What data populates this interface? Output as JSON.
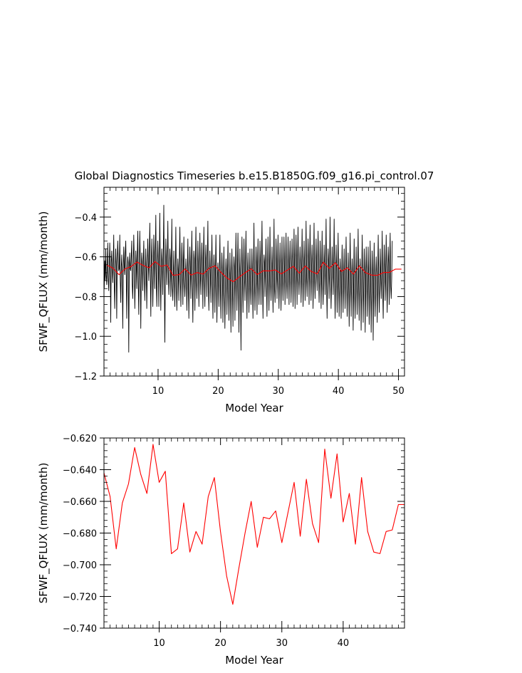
{
  "figure": {
    "title": "Global Diagnostics Timeseries b.e15.B1850G.f09_g16.pi_control.07"
  },
  "chart_data": [
    {
      "type": "line",
      "title": "Global Diagnostics Timeseries b.e15.B1850G.f09_g16.pi_control.07",
      "xlabel": "Model Year",
      "ylabel": "SFWF_QFLUX (mm/month)",
      "xlim": [
        1,
        51
      ],
      "ylim": [
        -1.2,
        -0.25
      ],
      "xticks": [
        10,
        20,
        30,
        40,
        50
      ],
      "xtick_labels": [
        "10",
        "20",
        "30",
        "40",
        "50"
      ],
      "yticks": [
        -1.2,
        -1.0,
        -0.8,
        -0.6,
        -0.4
      ],
      "ytick_labels": [
        "−1.2",
        "−1.0",
        "−0.8",
        "−0.6",
        "−0.4"
      ],
      "grid": false,
      "series": [
        {
          "role": "monthly",
          "color": "#000000",
          "x_start": 1.0417,
          "x_step": 0.08333,
          "values": [
            -0.76,
            -0.62,
            -0.72,
            -0.56,
            -0.69,
            -0.74,
            -0.66,
            -0.53,
            -0.71,
            -0.77,
            -0.66,
            -0.53,
            -0.63,
            -0.93,
            -0.63,
            -0.57,
            -0.65,
            -0.73,
            -0.65,
            -0.49,
            -0.73,
            -0.86,
            -0.69,
            -0.56,
            -0.64,
            -0.91,
            -0.63,
            -0.52,
            -0.61,
            -0.67,
            -0.66,
            -0.49,
            -0.72,
            -0.83,
            -0.65,
            -0.59,
            -0.69,
            -0.96,
            -0.67,
            -0.55,
            -0.65,
            -0.69,
            -0.58,
            -0.52,
            -0.7,
            -0.91,
            -0.67,
            -0.6,
            -0.63,
            -1.08,
            -0.67,
            -0.58,
            -0.66,
            -0.67,
            -0.6,
            -0.52,
            -0.74,
            -0.81,
            -0.66,
            -0.49,
            -0.63,
            -0.86,
            -0.72,
            -0.57,
            -0.64,
            -0.76,
            -0.59,
            -0.47,
            -0.74,
            -0.89,
            -0.64,
            -0.47,
            -0.62,
            -0.96,
            -0.69,
            -0.58,
            -0.63,
            -0.77,
            -0.64,
            -0.52,
            -0.67,
            -0.82,
            -0.7,
            -0.56,
            -0.67,
            -0.86,
            -0.67,
            -0.51,
            -0.62,
            -0.72,
            -0.6,
            -0.43,
            -0.69,
            -0.9,
            -0.64,
            -0.51,
            -0.65,
            -0.85,
            -0.68,
            -0.49,
            -0.6,
            -0.76,
            -0.59,
            -0.39,
            -0.73,
            -0.85,
            -0.65,
            -0.52,
            -0.63,
            -0.85,
            -0.64,
            -0.38,
            -0.68,
            -0.87,
            -0.67,
            -0.56,
            -0.63,
            -0.79,
            -0.59,
            -0.34,
            -0.71,
            -1.03,
            -0.69,
            -0.51,
            -0.62,
            -0.74,
            -0.63,
            -0.42,
            -0.68,
            -0.79,
            -0.7,
            -0.56,
            -0.61,
            -0.8,
            -0.66,
            -0.41,
            -0.76,
            -0.82,
            -0.71,
            -0.57,
            -0.7,
            -0.85,
            -0.67,
            -0.45,
            -0.71,
            -0.87,
            -0.74,
            -0.61,
            -0.67,
            -0.82,
            -0.64,
            -0.45,
            -0.72,
            -0.85,
            -0.66,
            -0.53,
            -0.66,
            -0.84,
            -0.63,
            -0.5,
            -0.73,
            -0.8,
            -0.71,
            -0.61,
            -0.69,
            -0.87,
            -0.7,
            -0.51,
            -0.73,
            -0.91,
            -0.69,
            -0.55,
            -0.65,
            -0.81,
            -0.65,
            -0.47,
            -0.71,
            -0.93,
            -0.71,
            -0.57,
            -0.61,
            -0.87,
            -0.63,
            -0.45,
            -0.72,
            -0.81,
            -0.68,
            -0.52,
            -0.65,
            -0.85,
            -0.67,
            -0.48,
            -0.7,
            -0.79,
            -0.64,
            -0.53,
            -0.66,
            -0.86,
            -0.62,
            -0.45,
            -0.71,
            -0.85,
            -0.65,
            -0.54,
            -0.64,
            -0.8,
            -0.62,
            -0.42,
            -0.74,
            -0.87,
            -0.71,
            -0.57,
            -0.7,
            -0.83,
            -0.66,
            -0.49,
            -0.72,
            -0.91,
            -0.73,
            -0.59,
            -0.67,
            -0.88,
            -0.68,
            -0.49,
            -0.7,
            -0.93,
            -0.71,
            -0.63,
            -0.7,
            -0.85,
            -0.67,
            -0.49,
            -0.76,
            -0.91,
            -0.7,
            -0.58,
            -0.69,
            -0.93,
            -0.72,
            -0.55,
            -0.76,
            -0.96,
            -0.73,
            -0.61,
            -0.67,
            -0.89,
            -0.7,
            -0.52,
            -0.73,
            -0.92,
            -0.74,
            -0.58,
            -0.75,
            -0.98,
            -0.69,
            -0.56,
            -0.75,
            -0.95,
            -0.72,
            -0.6,
            -0.65,
            -0.92,
            -0.68,
            -0.48,
            -0.69,
            -0.87,
            -0.68,
            -0.48,
            -0.7,
            -0.98,
            -0.71,
            -0.56,
            -0.75,
            -1.07,
            -0.68,
            -0.5,
            -0.69,
            -0.88,
            -0.69,
            -0.51,
            -0.7,
            -0.82,
            -0.65,
            -0.47,
            -0.72,
            -0.91,
            -0.69,
            -0.58,
            -0.7,
            -0.88,
            -0.69,
            -0.56,
            -0.74,
            -0.84,
            -0.71,
            -0.56,
            -0.71,
            -0.91,
            -0.71,
            -0.43,
            -0.72,
            -0.87,
            -0.72,
            -0.55,
            -0.64,
            -0.89,
            -0.66,
            -0.51,
            -0.73,
            -0.84,
            -0.7,
            -0.52,
            -0.65,
            -0.84,
            -0.62,
            -0.42,
            -0.72,
            -0.91,
            -0.68,
            -0.59,
            -0.63,
            -0.8,
            -0.65,
            -0.51,
            -0.72,
            -0.9,
            -0.68,
            -0.5,
            -0.68,
            -0.87,
            -0.67,
            -0.45,
            -0.72,
            -0.82,
            -0.68,
            -0.55,
            -0.68,
            -0.88,
            -0.67,
            -0.41,
            -0.76,
            -0.83,
            -0.71,
            -0.51,
            -0.64,
            -0.81,
            -0.68,
            -0.49,
            -0.71,
            -0.86,
            -0.68,
            -0.53,
            -0.67,
            -0.87,
            -0.67,
            -0.5,
            -0.7,
            -0.82,
            -0.68,
            -0.5,
            -0.66,
            -0.84,
            -0.66,
            -0.48,
            -0.73,
            -0.81,
            -0.69,
            -0.5,
            -0.68,
            -0.84,
            -0.64,
            -0.52,
            -0.68,
            -0.83,
            -0.67,
            -0.51,
            -0.63,
            -0.85,
            -0.66,
            -0.46,
            -0.66,
            -0.86,
            -0.64,
            -0.49,
            -0.66,
            -0.84,
            -0.64,
            -0.45,
            -0.71,
            -0.79,
            -0.68,
            -0.55,
            -0.64,
            -0.83,
            -0.67,
            -0.46,
            -0.68,
            -0.85,
            -0.67,
            -0.52,
            -0.65,
            -0.82,
            -0.68,
            -0.42,
            -0.7,
            -0.8,
            -0.66,
            -0.51,
            -0.63,
            -0.84,
            -0.64,
            -0.44,
            -0.69,
            -0.82,
            -0.65,
            -0.54,
            -0.65,
            -0.86,
            -0.65,
            -0.43,
            -0.7,
            -0.81,
            -0.66,
            -0.51,
            -0.67,
            -0.77,
            -0.64,
            -0.47,
            -0.69,
            -0.83,
            -0.7,
            -0.52,
            -0.66,
            -0.86,
            -0.67,
            -0.47,
            -0.72,
            -0.84,
            -0.71,
            -0.54,
            -0.64,
            -0.79,
            -0.64,
            -0.41,
            -0.73,
            -0.91,
            -0.67,
            -0.56,
            -0.63,
            -0.81,
            -0.67,
            -0.4,
            -0.7,
            -0.86,
            -0.7,
            -0.55,
            -0.66,
            -0.79,
            -0.65,
            -0.41,
            -0.71,
            -0.91,
            -0.68,
            -0.54,
            -0.67,
            -0.88,
            -0.69,
            -0.48,
            -0.73,
            -0.9,
            -0.71,
            -0.61,
            -0.7,
            -0.91,
            -0.72,
            -0.54,
            -0.73,
            -0.88,
            -0.7,
            -0.56,
            -0.71,
            -0.86,
            -0.68,
            -0.5,
            -0.73,
            -0.9,
            -0.73,
            -0.58,
            -0.72,
            -0.95,
            -0.7,
            -0.48,
            -0.74,
            -0.9,
            -0.69,
            -0.61,
            -0.7,
            -0.97,
            -0.72,
            -0.51,
            -0.78,
            -0.91,
            -0.72,
            -0.55,
            -0.72,
            -0.89,
            -0.71,
            -0.46,
            -0.73,
            -0.92,
            -0.7,
            -0.61,
            -0.72,
            -0.97,
            -0.72,
            -0.49,
            -0.75,
            -0.93,
            -0.74,
            -0.56,
            -0.69,
            -0.98,
            -0.7,
            -0.55,
            -0.71,
            -0.9,
            -0.7,
            -0.55,
            -0.73,
            -0.94,
            -0.72,
            -0.52,
            -0.76,
            -0.98,
            -0.73,
            -0.57,
            -0.71,
            -1.02,
            -0.72,
            -0.53,
            -0.78,
            -0.9,
            -0.71,
            -0.6,
            -0.69,
            -0.93,
            -0.7,
            -0.49,
            -0.73,
            -0.88,
            -0.73,
            -0.56,
            -0.69,
            -0.81,
            -0.69,
            -0.47,
            -0.76,
            -0.91,
            -0.7,
            -0.54,
            -0.69,
            -0.82,
            -0.65,
            -0.49,
            -0.72,
            -0.88,
            -0.68,
            -0.55,
            -0.63,
            -0.84,
            -0.62,
            -0.48,
            -0.75,
            -0.81,
            -0.71,
            -0.52
          ]
        },
        {
          "role": "annual-mean",
          "color": "#ff0000",
          "x": [
            1.5,
            2.5,
            3.5,
            4.5,
            5.5,
            6.5,
            7.5,
            8.5,
            9.5,
            10.5,
            11.5,
            12.5,
            13.5,
            14.5,
            15.5,
            16.5,
            17.5,
            18.5,
            19.5,
            20.5,
            21.5,
            22.5,
            23.5,
            24.5,
            25.5,
            26.5,
            27.5,
            28.5,
            29.5,
            30.5,
            31.5,
            32.5,
            33.5,
            34.5,
            35.5,
            36.5,
            37.5,
            38.5,
            39.5,
            40.5,
            41.5,
            42.5,
            43.5,
            44.5,
            45.5,
            46.5,
            47.5,
            48.5,
            49.5,
            50.5
          ],
          "values": [
            -0.642,
            -0.657,
            -0.69,
            -0.661,
            -0.649,
            -0.626,
            -0.643,
            -0.655,
            -0.624,
            -0.648,
            -0.641,
            -0.693,
            -0.69,
            -0.661,
            -0.692,
            -0.679,
            -0.687,
            -0.657,
            -0.645,
            -0.679,
            -0.707,
            -0.725,
            -0.702,
            -0.68,
            -0.66,
            -0.689,
            -0.67,
            -0.671,
            -0.666,
            -0.686,
            -0.667,
            -0.648,
            -0.682,
            -0.646,
            -0.674,
            -0.686,
            -0.627,
            -0.658,
            -0.63,
            -0.673,
            -0.655,
            -0.687,
            -0.645,
            -0.679,
            -0.692,
            -0.693,
            -0.679,
            -0.678,
            -0.662,
            -0.662
          ]
        }
      ]
    },
    {
      "type": "line",
      "xlabel": "Model Year",
      "ylabel": "SFWF_QFLUX (mm/month)",
      "xlim": [
        1,
        50
      ],
      "ylim": [
        -0.74,
        -0.62
      ],
      "xticks": [
        10,
        20,
        30,
        40
      ],
      "xtick_labels": [
        "10",
        "20",
        "30",
        "40"
      ],
      "yticks": [
        -0.74,
        -0.72,
        -0.7,
        -0.68,
        -0.66,
        -0.64,
        -0.62
      ],
      "ytick_labels": [
        "−0.740",
        "−0.720",
        "−0.700",
        "−0.680",
        "−0.660",
        "−0.640",
        "−0.620"
      ],
      "grid": false,
      "series": [
        {
          "role": "annual-mean",
          "color": "#ff0000",
          "x": [
            1,
            2,
            3,
            4,
            5,
            6,
            7,
            8,
            9,
            10,
            11,
            12,
            13,
            14,
            15,
            16,
            17,
            18,
            19,
            20,
            21,
            22,
            23,
            24,
            25,
            26,
            27,
            28,
            29,
            30,
            31,
            32,
            33,
            34,
            35,
            36,
            37,
            38,
            39,
            40,
            41,
            42,
            43,
            44,
            45,
            46,
            47,
            48,
            49,
            50
          ],
          "values": [
            -0.642,
            -0.657,
            -0.69,
            -0.661,
            -0.649,
            -0.626,
            -0.643,
            -0.655,
            -0.624,
            -0.648,
            -0.641,
            -0.693,
            -0.69,
            -0.661,
            -0.692,
            -0.679,
            -0.687,
            -0.657,
            -0.645,
            -0.679,
            -0.707,
            -0.725,
            -0.702,
            -0.68,
            -0.66,
            -0.689,
            -0.67,
            -0.671,
            -0.666,
            -0.686,
            -0.667,
            -0.648,
            -0.682,
            -0.646,
            -0.674,
            -0.686,
            -0.627,
            -0.658,
            -0.63,
            -0.673,
            -0.655,
            -0.687,
            -0.645,
            -0.679,
            -0.692,
            -0.693,
            -0.679,
            -0.678,
            -0.662,
            -0.662
          ]
        }
      ]
    }
  ]
}
